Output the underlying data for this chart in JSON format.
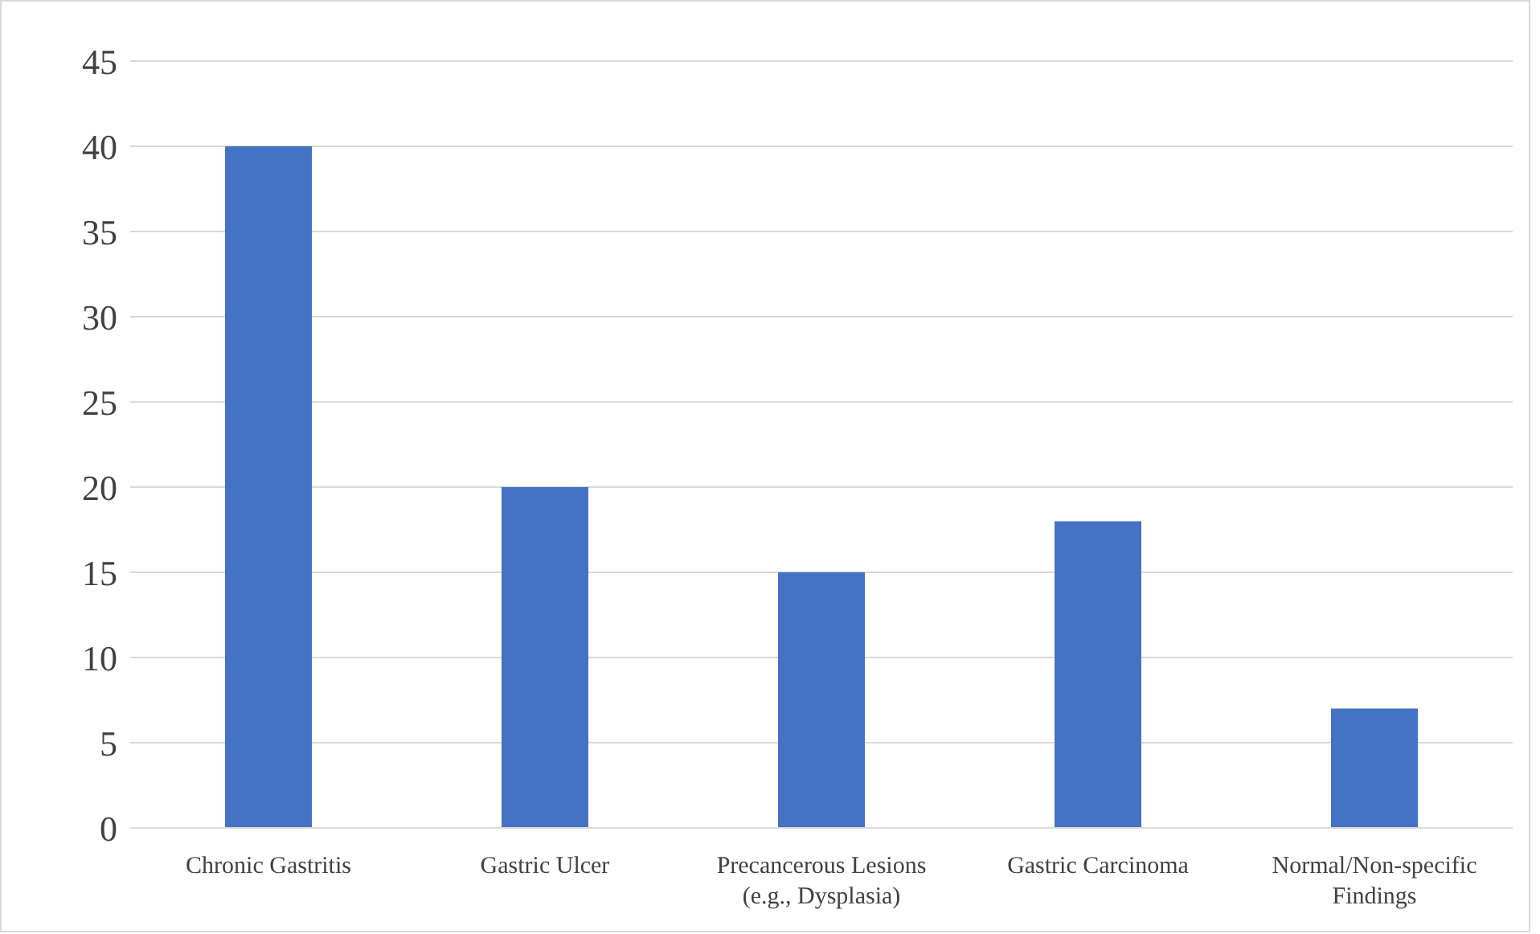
{
  "chart_data": {
    "type": "bar",
    "categories": [
      "Chronic Gastritis",
      "Gastric Ulcer",
      "Precancerous Lesions (e.g., Dysplasia)",
      "Gastric Carcinoma",
      "Normal/Non-specific Findings"
    ],
    "values": [
      40,
      20,
      15,
      18,
      7
    ],
    "color": "#4472c4",
    "ylim": [
      0,
      45
    ],
    "yticks": [
      0,
      5,
      10,
      15,
      20,
      25,
      30,
      35,
      40,
      45
    ],
    "grid": "y"
  }
}
